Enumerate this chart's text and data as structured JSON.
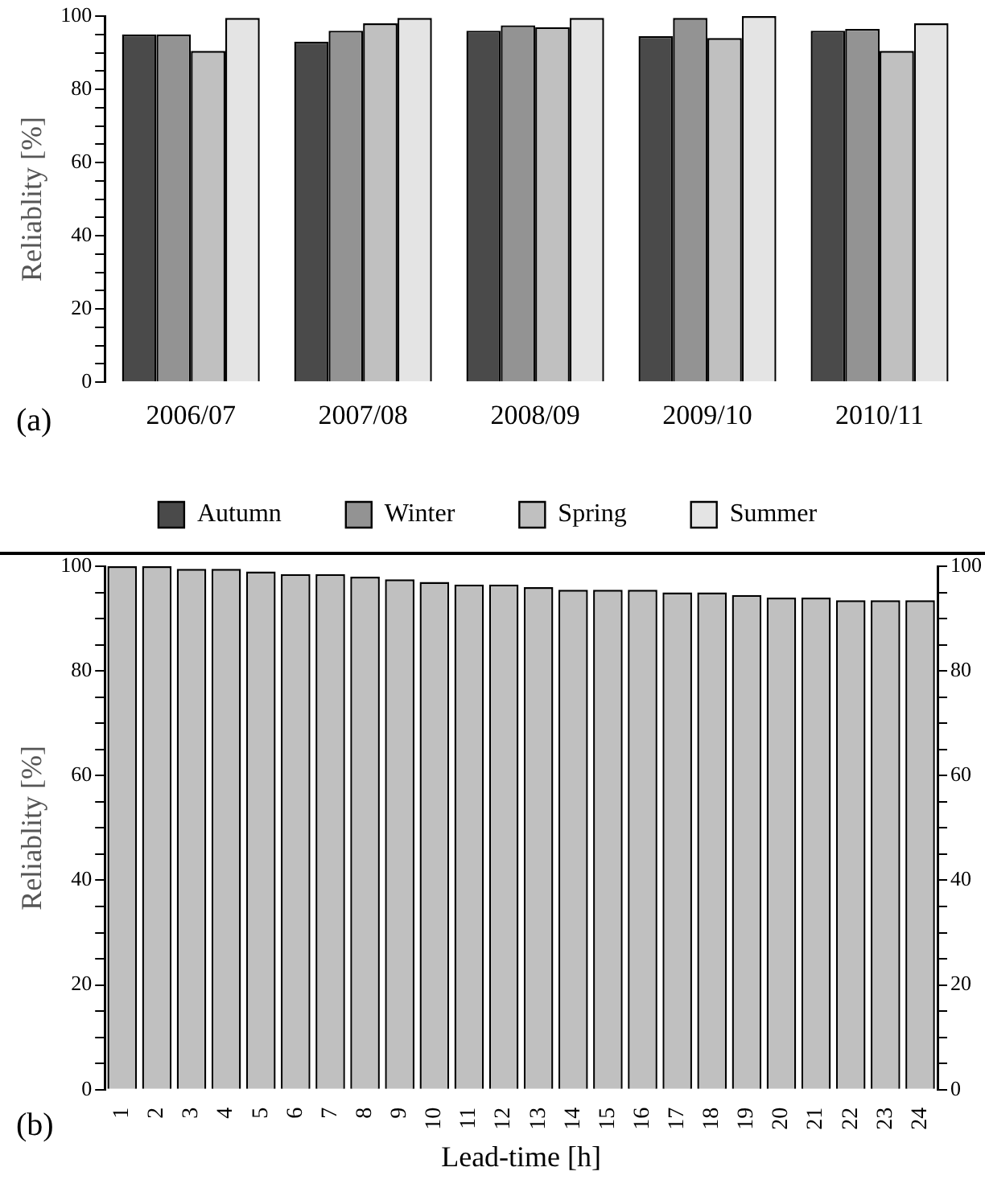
{
  "chart_data": [
    {
      "type": "bar",
      "ylabel": "Reliablity [%]",
      "categories": [
        "2006/07",
        "2007/08",
        "2008/09",
        "2009/10",
        "2010/11"
      ],
      "series": [
        {
          "name": "Autumn",
          "color": "#4a4a4a",
          "values": [
            95,
            93,
            96,
            94.5,
            96
          ]
        },
        {
          "name": "Winter",
          "color": "#939393",
          "values": [
            95,
            96,
            97.5,
            99.5,
            96.5
          ]
        },
        {
          "name": "Spring",
          "color": "#c0c0c0",
          "values": [
            90.5,
            98,
            97,
            94,
            90.5
          ]
        },
        {
          "name": "Summer",
          "color": "#e4e4e4",
          "values": [
            99.5,
            99.5,
            99.5,
            100,
            98
          ]
        }
      ],
      "ylim": [
        0,
        100
      ],
      "yticks": [
        0,
        {
          "value": 5,
          "label": null
        },
        {
          "value": 10,
          "label": null
        },
        {
          "value": 15,
          "label": null
        },
        20,
        {
          "value": 25,
          "label": null
        },
        {
          "value": 30,
          "label": null
        },
        {
          "value": 35,
          "label": null
        },
        40,
        {
          "value": 45,
          "label": null
        },
        {
          "value": 50,
          "label": null
        },
        {
          "value": 55,
          "label": null
        },
        60,
        {
          "value": 65,
          "label": null
        },
        {
          "value": 70,
          "label": null
        },
        {
          "value": 75,
          "label": null
        },
        80,
        {
          "value": 85,
          "label": null
        },
        {
          "value": 90,
          "label": null
        },
        {
          "value": 95,
          "label": null
        },
        100
      ],
      "legend": "bottom",
      "annotations": [
        "(a)"
      ]
    },
    {
      "type": "bar",
      "xlabel": "Lead-time [h]",
      "ylabel": "Reliablity [%]",
      "categories": [
        "1",
        "2",
        "3",
        "4",
        "5",
        "6",
        "7",
        "8",
        "9",
        "10",
        "11",
        "12",
        "13",
        "14",
        "15",
        "16",
        "17",
        "18",
        "19",
        "20",
        "21",
        "22",
        "23",
        "24"
      ],
      "color": "#c0c0c0",
      "values": [
        100,
        100,
        99.5,
        99.5,
        99,
        98.5,
        98.5,
        98,
        97.5,
        97,
        96.5,
        96.5,
        96,
        95.5,
        95.5,
        95.5,
        95,
        95,
        94.5,
        94,
        94,
        93.5,
        93.5,
        93.5
      ],
      "ylim": [
        0,
        100
      ],
      "yticks": [
        0,
        {
          "value": 5,
          "label": null
        },
        {
          "value": 10,
          "label": null
        },
        {
          "value": 15,
          "label": null
        },
        20,
        {
          "value": 25,
          "label": null
        },
        {
          "value": 30,
          "label": null
        },
        {
          "value": 35,
          "label": null
        },
        40,
        {
          "value": 45,
          "label": null
        },
        {
          "value": 50,
          "label": null
        },
        {
          "value": 55,
          "label": null
        },
        60,
        {
          "value": 65,
          "label": null
        },
        {
          "value": 70,
          "label": null
        },
        {
          "value": 75,
          "label": null
        },
        80,
        {
          "value": 85,
          "label": null
        },
        {
          "value": 90,
          "label": null
        },
        {
          "value": 95,
          "label": null
        },
        100
      ],
      "y2lim": [
        0,
        100
      ],
      "y2ticks": [
        0,
        {
          "value": 5,
          "label": null
        },
        {
          "value": 10,
          "label": null
        },
        {
          "value": 15,
          "label": null
        },
        20,
        {
          "value": 25,
          "label": null
        },
        {
          "value": 30,
          "label": null
        },
        {
          "value": 35,
          "label": null
        },
        40,
        {
          "value": 45,
          "label": null
        },
        {
          "value": 50,
          "label": null
        },
        {
          "value": 55,
          "label": null
        },
        60,
        {
          "value": 65,
          "label": null
        },
        {
          "value": 70,
          "label": null
        },
        {
          "value": 75,
          "label": null
        },
        80,
        {
          "value": 85,
          "label": null
        },
        {
          "value": 90,
          "label": null
        },
        {
          "value": 95,
          "label": null
        },
        100
      ],
      "annotations": [
        "(b)"
      ]
    }
  ]
}
